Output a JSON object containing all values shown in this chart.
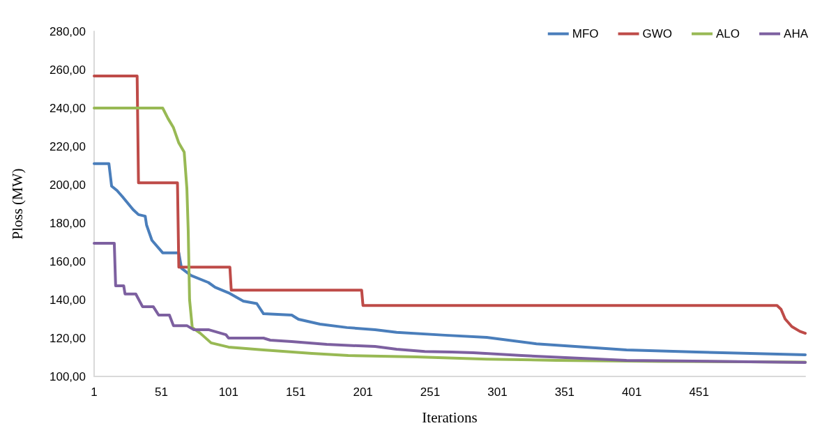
{
  "chart_data": {
    "type": "line",
    "xlabel": "Iterations",
    "ylabel": "Ploss (MW)",
    "xlim": [
      1,
      530
    ],
    "xticks": [
      1,
      51,
      101,
      151,
      201,
      251,
      301,
      351,
      401,
      451
    ],
    "ylim": [
      100,
      280
    ],
    "yticks": [
      {
        "value": 100,
        "label": "100,00"
      },
      {
        "value": 120,
        "label": "120,00"
      },
      {
        "value": 140,
        "label": "140,00"
      },
      {
        "value": 160,
        "label": "160,00"
      },
      {
        "value": 180,
        "label": "180,00"
      },
      {
        "value": 200,
        "label": "200,00"
      },
      {
        "value": 220,
        "label": "220,00"
      },
      {
        "value": 240,
        "label": "240,00"
      },
      {
        "value": 260,
        "label": "260,00"
      },
      {
        "value": 280,
        "label": "280,00"
      }
    ],
    "grid": false,
    "legend": "top right",
    "marker": "none",
    "line_style": "solid",
    "series": [
      {
        "name": "MFO",
        "color": "#4a7ebb",
        "x": [
          1,
          12,
          14,
          18,
          22,
          30,
          34,
          39,
          40,
          44,
          52,
          64,
          66,
          73,
          86,
          91,
          101,
          112,
          122,
          127,
          148,
          153,
          169,
          189,
          210,
          226,
          262,
          293,
          330,
          397,
          449,
          530
        ],
        "values": [
          211,
          211,
          199.3,
          197,
          193.8,
          187,
          184.4,
          183.6,
          179,
          171,
          164.5,
          164.5,
          156.4,
          152.7,
          149,
          146.5,
          143.6,
          139.3,
          138,
          132.7,
          132,
          129.8,
          127.3,
          125.5,
          124.4,
          123,
          121.5,
          120.4,
          117,
          113.8,
          112.7,
          111.3
        ]
      },
      {
        "name": "GWO",
        "color": "#be4b48",
        "x": [
          1,
          33,
          34,
          63,
          64,
          102,
          103,
          200,
          201,
          509,
          512,
          515,
          520,
          526,
          530
        ],
        "values": [
          256.7,
          256.7,
          201,
          201,
          157,
          157,
          145,
          145,
          137,
          137,
          135,
          130,
          126,
          123.5,
          122.5
        ]
      },
      {
        "name": "ALO",
        "color": "#98b954",
        "x": [
          1,
          52,
          56,
          60,
          64,
          68,
          70,
          71,
          72,
          74,
          80,
          88,
          101,
          127,
          163,
          190,
          241,
          293,
          345,
          423,
          530
        ],
        "values": [
          240,
          240,
          234.5,
          229.8,
          221.8,
          217,
          198,
          176,
          140,
          125.5,
          122.5,
          117.5,
          115.3,
          113.8,
          112,
          110.9,
          110.2,
          109,
          108.4,
          107.8,
          107.5
        ]
      },
      {
        "name": "AHA",
        "color": "#7d60a0",
        "x": [
          1,
          16,
          17,
          23,
          24,
          32,
          37,
          45,
          49,
          57,
          60,
          70,
          75,
          86,
          99,
          101,
          127,
          132,
          148,
          174,
          210,
          226,
          247,
          267,
          283,
          319,
          397,
          530
        ],
        "values": [
          169.5,
          169.5,
          147.3,
          147.3,
          143,
          143,
          136.4,
          136.4,
          132,
          132,
          126.5,
          126.5,
          124.4,
          124.4,
          121.8,
          120,
          120,
          118.9,
          118.2,
          116.7,
          115.6,
          114.2,
          113,
          112.7,
          112.4,
          110.9,
          108.4,
          107.3
        ]
      }
    ]
  }
}
